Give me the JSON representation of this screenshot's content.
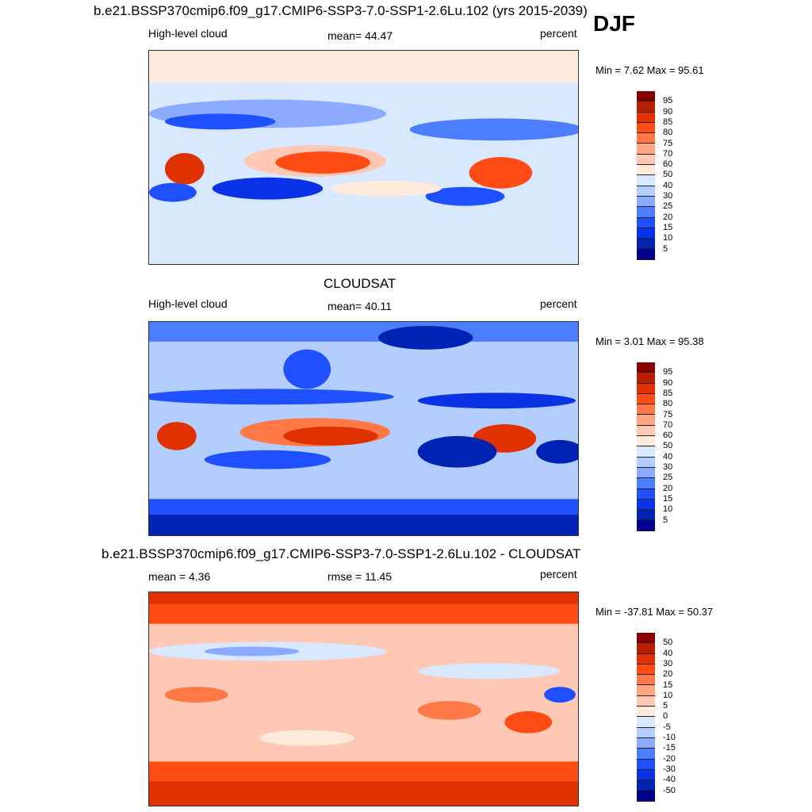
{
  "season": "DJF",
  "colors": [
    "#870000",
    "#b81e00",
    "#e03200",
    "#ff4b14",
    "#ff7846",
    "#ffa582",
    "#ffc8b4",
    "#ffebdc",
    "#d7e8ff",
    "#b4cdff",
    "#8caaff",
    "#4b7dff",
    "#1e50ff",
    "#0a32e6",
    "#0023b4",
    "#00008c"
  ],
  "chart_data": [
    {
      "type": "heatmap",
      "title": "b.e21.BSSP370cmip6.f09_g17.CMIP6-SSP3-7.0-SSP1-2.6Lu.102 (yrs 2015-2039)",
      "left": "High-level cloud",
      "center": "mean=  44.47",
      "right": "percent",
      "minmax": "Min =   7.62 Max =  95.61",
      "levels": [
        "95",
        "90",
        "85",
        "80",
        "75",
        "70",
        "60",
        "50",
        "40",
        "30",
        "25",
        "20",
        "15",
        "10",
        "5"
      ]
    },
    {
      "type": "heatmap",
      "title": "CLOUDSAT",
      "left": "High-level cloud",
      "center": "mean=  40.11",
      "right": "percent",
      "minmax": "Min =   3.01 Max =  95.38",
      "levels": [
        "95",
        "90",
        "85",
        "80",
        "75",
        "70",
        "60",
        "50",
        "40",
        "30",
        "25",
        "20",
        "15",
        "10",
        "5"
      ]
    },
    {
      "type": "heatmap",
      "title": "b.e21.BSSP370cmip6.f09_g17.CMIP6-SSP3-7.0-SSP1-2.6Lu.102 - CLOUDSAT",
      "left": "mean =   4.36",
      "center": "rmse =  11.45",
      "right": "percent",
      "minmax": "Min = -37.81 Max =  50.37",
      "levels": [
        "50",
        "40",
        "30",
        "20",
        "15",
        "10",
        "5",
        "0",
        "-5",
        "-10",
        "-15",
        "-20",
        "-30",
        "-40",
        "-50"
      ]
    }
  ]
}
